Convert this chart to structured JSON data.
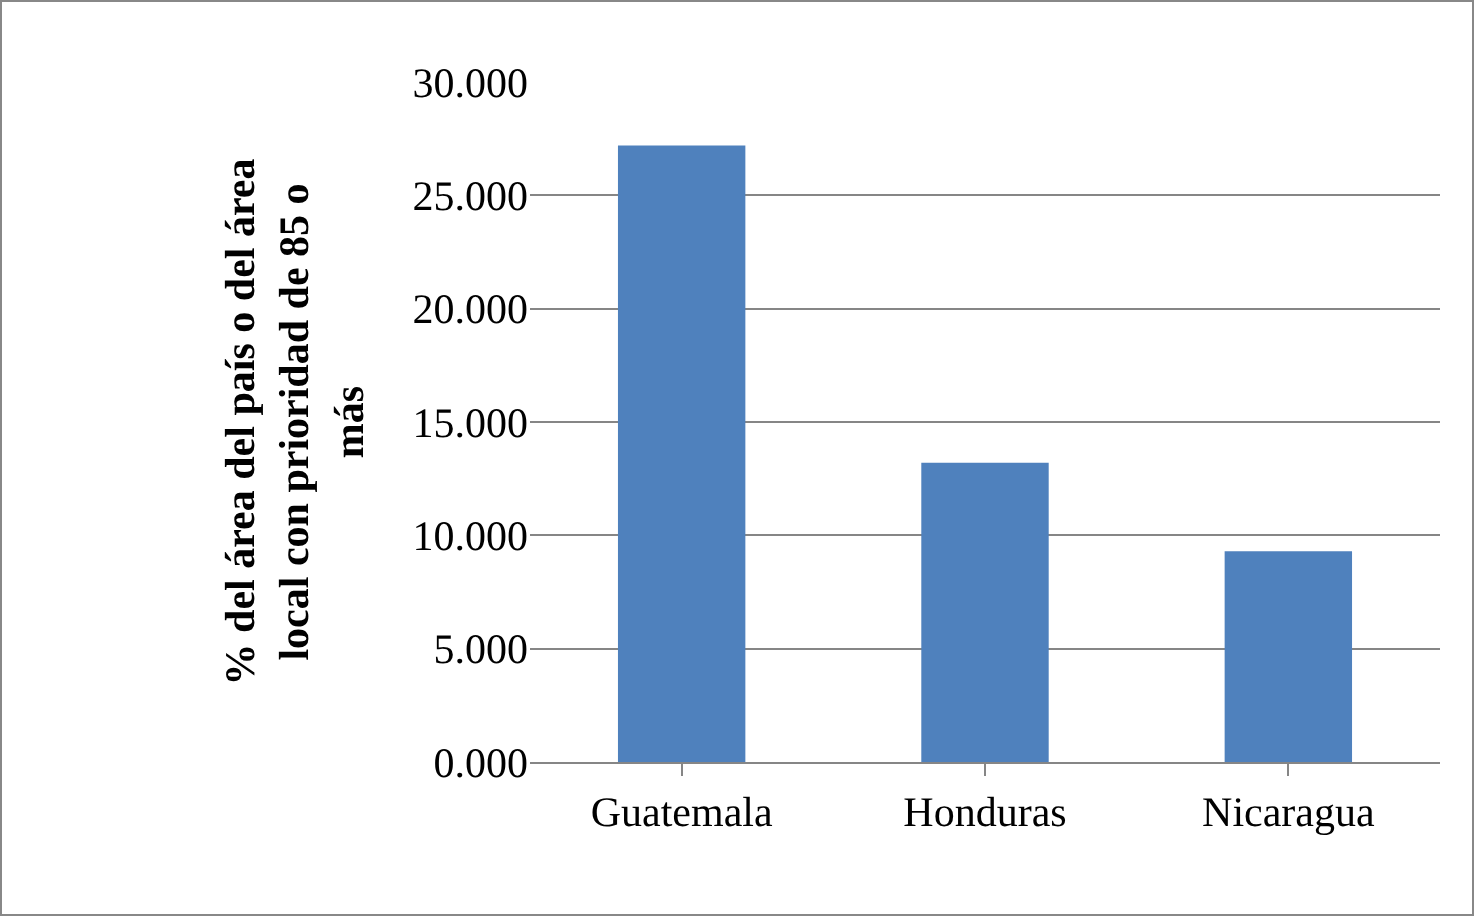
{
  "chart_data": {
    "type": "bar",
    "ylabel": "% del área del país o del área local con prioridad de 85 o más",
    "categories": [
      "Guatemala",
      "Honduras",
      "Nicaragua"
    ],
    "values": [
      27.2,
      13.2,
      9.3
    ],
    "color": "#4f81bd",
    "ylim": [
      0,
      30
    ],
    "yticks": [
      {
        "value": 0,
        "label": "0.000"
      },
      {
        "value": 5,
        "label": "5.000"
      },
      {
        "value": 10,
        "label": "10.000"
      },
      {
        "value": 15,
        "label": "15.000"
      },
      {
        "value": 20,
        "label": "20.000"
      },
      {
        "value": 25,
        "label": "25.000"
      },
      {
        "value": 30,
        "label": "30.000"
      }
    ],
    "grid": "y",
    "legend": false
  }
}
